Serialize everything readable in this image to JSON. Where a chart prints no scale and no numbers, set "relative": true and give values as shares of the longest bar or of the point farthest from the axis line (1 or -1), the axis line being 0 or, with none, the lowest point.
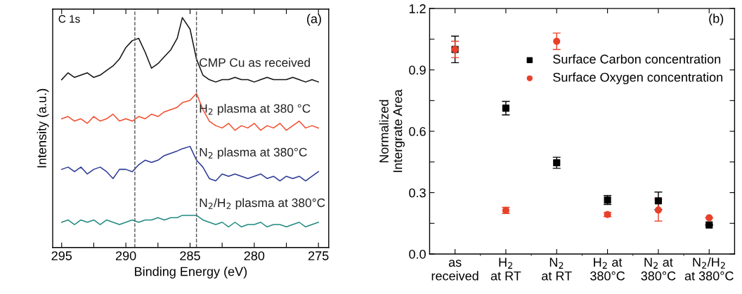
{
  "chart_data": [
    {
      "type": "line",
      "relative": true,
      "title": null,
      "xlabel": "Binding Energy (eV)",
      "ylabel": "Intensity (a.u.)",
      "tick_labels": "x",
      "xlim": [
        295.7,
        274.2
      ],
      "xticks": [
        295,
        {
          "value": 292.5,
          "label": null
        },
        290,
        {
          "value": 287.5,
          "label": null
        },
        285,
        {
          "value": 282.5,
          "label": null
        },
        280,
        {
          "value": 277.5,
          "label": null
        },
        275
      ],
      "x": [
        295,
        294.5,
        294,
        293.5,
        293,
        292.5,
        292,
        291.5,
        291,
        290.5,
        290,
        289.5,
        289,
        288.5,
        288,
        287.5,
        287,
        286.5,
        286,
        285.6,
        285,
        284.5,
        284,
        283.5,
        283,
        282.5,
        282,
        281.5,
        281,
        280.5,
        280,
        279.5,
        279,
        278.5,
        278,
        277.5,
        277,
        276.5,
        276,
        275.5,
        275
      ],
      "series": [
        {
          "name": "CMP Cu as received",
          "color": "#111111",
          "values": [
            0.73,
            0.76,
            0.74,
            0.75,
            0.76,
            0.74,
            0.75,
            0.77,
            0.79,
            0.82,
            0.87,
            0.9,
            0.91,
            0.85,
            0.78,
            0.8,
            0.83,
            0.86,
            0.91,
            1.0,
            0.95,
            0.82,
            0.75,
            0.73,
            0.72,
            0.73,
            0.73,
            0.74,
            0.73,
            0.73,
            0.72,
            0.73,
            0.74,
            0.73,
            0.73,
            0.73,
            0.74,
            0.73,
            0.72,
            0.73,
            0.72
          ]
        },
        {
          "name": "H$_{2}$ plasma at 380 °C",
          "color": "#f04e2e",
          "values": [
            0.56,
            0.57,
            0.55,
            0.56,
            0.54,
            0.57,
            0.55,
            0.56,
            0.58,
            0.55,
            0.56,
            0.55,
            0.57,
            0.56,
            0.58,
            0.57,
            0.59,
            0.6,
            0.61,
            0.63,
            0.64,
            0.67,
            0.6,
            0.55,
            0.53,
            0.52,
            0.54,
            0.51,
            0.53,
            0.52,
            0.54,
            0.51,
            0.53,
            0.52,
            0.54,
            0.51,
            0.53,
            0.55,
            0.52,
            0.53,
            0.52
          ]
        },
        {
          "name": "N$_{2}$ plasma at 380°C",
          "color": "#2b3a94",
          "values": [
            0.34,
            0.35,
            0.33,
            0.35,
            0.32,
            0.34,
            0.35,
            0.33,
            0.3,
            0.34,
            0.34,
            0.33,
            0.36,
            0.38,
            0.37,
            0.38,
            0.4,
            0.41,
            0.42,
            0.43,
            0.44,
            0.38,
            0.35,
            0.3,
            0.29,
            0.32,
            0.31,
            0.32,
            0.31,
            0.3,
            0.31,
            0.32,
            0.3,
            0.31,
            0.29,
            0.31,
            0.3,
            0.31,
            0.29,
            0.31,
            0.33
          ]
        },
        {
          "name": "N$_{2}$/H$_{2}$ plasma at 380°C",
          "color": "#1f8a80",
          "values": [
            0.11,
            0.12,
            0.1,
            0.12,
            0.11,
            0.12,
            0.1,
            0.12,
            0.11,
            0.1,
            0.11,
            0.12,
            0.11,
            0.12,
            0.12,
            0.13,
            0.12,
            0.13,
            0.13,
            0.14,
            0.14,
            0.14,
            0.12,
            0.11,
            0.1,
            0.11,
            0.09,
            0.11,
            0.09,
            0.1,
            0.1,
            0.11,
            0.09,
            0.1,
            0.1,
            0.09,
            0.1,
            0.11,
            0.09,
            0.1,
            0.11
          ]
        }
      ],
      "ref_lines": [
        {
          "axis": "x",
          "value": 289.3,
          "label": null,
          "color": "#555555",
          "line_style": "dashed"
        },
        {
          "axis": "x",
          "value": 284.5,
          "label": null,
          "color": "#555555",
          "line_style": "dashed"
        }
      ],
      "annotations": [
        "C 1s",
        "(a)"
      ],
      "grid": false
    },
    {
      "type": "scatter",
      "ylabel": "Normalized\nIntergrate Area",
      "ylim": [
        0,
        1.2
      ],
      "yticks": [
        {
          "value": 0,
          "label": "0.0"
        },
        {
          "value": 0.15,
          "label": null
        },
        0.3,
        {
          "value": 0.45,
          "label": null
        },
        0.6,
        {
          "value": 0.75,
          "label": null
        },
        0.9,
        {
          "value": 1.05,
          "label": null
        },
        1.2
      ],
      "categories": [
        "as\nreceived",
        "H$_{2}$\nat RT",
        "N$_{2}$\nat RT",
        "H$_{2}$ at\n380°C",
        "N$_{2}$ at\n380°C",
        "N$_{2}$/H$_{2}$\nat 380°C"
      ],
      "series": [
        {
          "name": "Surface Carbon concentration",
          "color": "#000000",
          "marker": "square",
          "values": [
            1.0,
            0.713,
            0.446,
            0.264,
            0.26,
            0.142
          ],
          "errors": [
            0.065,
            0.033,
            0.027,
            0.022,
            0.043,
            null
          ]
        },
        {
          "name": "Surface Oxygen concentration",
          "color": "#e8412a",
          "marker": "circle",
          "values": [
            1.0,
            0.213,
            1.04,
            0.193,
            0.215,
            0.177
          ],
          "errors": [
            0.04,
            0.015,
            0.04,
            0.01,
            0.054,
            null
          ]
        }
      ],
      "annotations": [
        "(b)"
      ],
      "grid": false,
      "legend": "top right"
    }
  ]
}
